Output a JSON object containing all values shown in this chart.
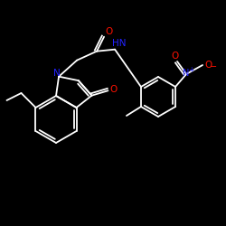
{
  "bg": "#000000",
  "bc": "#ffffff",
  "nc": "#2222ff",
  "oc": "#ff1100",
  "lw": 1.3,
  "fs": 7.5,
  "dpi": 100,
  "figsize": [
    2.5,
    2.5
  ],
  "xlim": [
    0,
    250
  ],
  "ylim": [
    0,
    250
  ]
}
